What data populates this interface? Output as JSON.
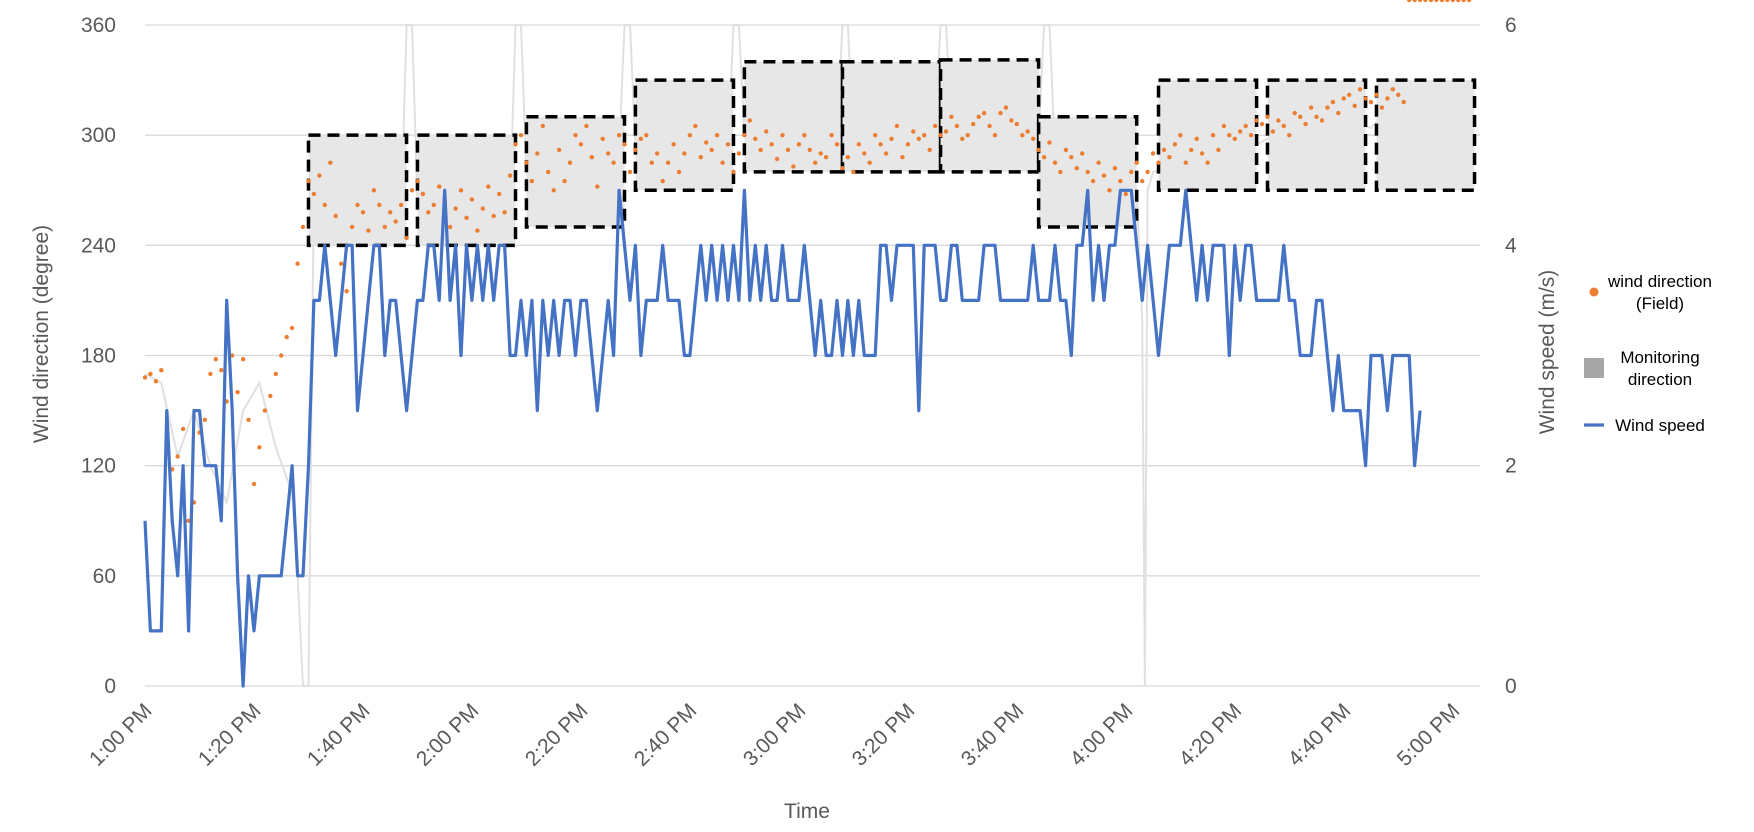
{
  "chart_data": {
    "type": "line",
    "xlabel": "Time",
    "ylabel_left": "Wind direction (degree)",
    "ylabel_right": "Wind speed (m/s)",
    "y_left_range": [
      0,
      360
    ],
    "y_left_ticks": [
      "0",
      "60",
      "120",
      "180",
      "240",
      "300",
      "360"
    ],
    "y_right_range": [
      0,
      6
    ],
    "y_right_ticks": [
      "0",
      "2",
      "4",
      "6"
    ],
    "x_range_minutes": [
      0,
      245
    ],
    "x_ticks": [
      {
        "label": "1:00 PM",
        "minute": 0
      },
      {
        "label": "1:20 PM",
        "minute": 20
      },
      {
        "label": "1:40 PM",
        "minute": 40
      },
      {
        "label": "2:00 PM",
        "minute": 60
      },
      {
        "label": "2:20 PM",
        "minute": 80
      },
      {
        "label": "2:40 PM",
        "minute": 100
      },
      {
        "label": "3:00 PM",
        "minute": 120
      },
      {
        "label": "3:20 PM",
        "minute": 140
      },
      {
        "label": "3:40 PM",
        "minute": 160
      },
      {
        "label": "4:00 PM",
        "minute": 180
      },
      {
        "label": "4:20 PM",
        "minute": 200
      },
      {
        "label": "4:40 PM",
        "minute": 220
      },
      {
        "label": "5:00 PM",
        "minute": 240
      }
    ],
    "grid": "horizontal",
    "legend_position": "right",
    "legend": [
      {
        "label_lines": [
          "wind direction",
          "(Field)"
        ],
        "marker": "dot",
        "color": "#ED7D31"
      },
      {
        "label_lines": [
          "Monitoring",
          "direction"
        ],
        "marker": "square",
        "color": "#A6A6A6"
      },
      {
        "label_lines": [
          "Wind speed"
        ],
        "marker": "line",
        "color": "#4472C4"
      }
    ],
    "monitoring_direction_boxes": [
      {
        "start_minute": 30,
        "end_minute": 48,
        "min_deg": 240,
        "max_deg": 300
      },
      {
        "start_minute": 50,
        "end_minute": 68,
        "min_deg": 240,
        "max_deg": 300
      },
      {
        "start_minute": 70,
        "end_minute": 88,
        "min_deg": 250,
        "max_deg": 310
      },
      {
        "start_minute": 90,
        "end_minute": 108,
        "min_deg": 270,
        "max_deg": 330
      },
      {
        "start_minute": 110,
        "end_minute": 128,
        "min_deg": 280,
        "max_deg": 340
      },
      {
        "start_minute": 128,
        "end_minute": 146,
        "min_deg": 280,
        "max_deg": 340
      },
      {
        "start_minute": 146,
        "end_minute": 164,
        "min_deg": 280,
        "max_deg": 341
      },
      {
        "start_minute": 164,
        "end_minute": 182,
        "min_deg": 250,
        "max_deg": 310
      },
      {
        "start_minute": 186,
        "end_minute": 204,
        "min_deg": 270,
        "max_deg": 330
      },
      {
        "start_minute": 206,
        "end_minute": 224,
        "min_deg": 270,
        "max_deg": 330
      },
      {
        "start_minute": 226,
        "end_minute": 244,
        "min_deg": 270,
        "max_deg": 330
      }
    ],
    "monitoring_direction_line": {
      "minute": [
        0,
        3,
        6,
        9,
        12,
        15,
        18,
        21,
        24,
        27,
        28,
        29,
        29.5,
        30,
        31,
        33,
        36,
        39,
        42,
        45,
        47,
        48,
        49,
        50,
        51,
        53,
        56,
        59,
        62,
        65,
        67,
        68,
        69,
        70,
        71,
        73,
        76,
        79,
        82,
        85,
        87,
        88,
        89,
        90,
        91,
        93,
        96,
        99,
        102,
        105,
        107,
        108,
        109,
        110,
        111,
        113,
        116,
        119,
        122,
        125,
        127,
        128,
        129,
        130,
        131,
        133,
        136,
        139,
        142,
        145,
        146,
        147,
        148,
        149,
        150,
        151,
        153,
        156,
        159,
        162,
        164,
        165,
        166,
        167,
        168,
        170,
        173,
        176,
        179,
        182,
        183,
        183.5,
        184,
        185,
        187,
        190,
        193,
        196,
        199,
        202,
        204,
        206,
        208,
        211,
        214,
        217,
        220,
        223,
        225,
        227,
        229,
        232,
        235,
        238,
        241,
        244
      ],
      "deg": [
        170,
        165,
        125,
        150,
        120,
        100,
        150,
        165,
        130,
        105,
        60,
        0,
        0,
        0,
        270,
        265,
        258,
        263,
        256,
        262,
        258,
        360,
        360,
        265,
        263,
        258,
        262,
        255,
        260,
        258,
        262,
        360,
        360,
        280,
        278,
        285,
        280,
        290,
        285,
        280,
        290,
        360,
        360,
        295,
        290,
        285,
        290,
        285,
        290,
        295,
        290,
        360,
        360,
        300,
        298,
        295,
        300,
        295,
        300,
        290,
        300,
        360,
        360,
        295,
        290,
        295,
        292,
        298,
        300,
        305,
        360,
        360,
        305,
        300,
        306,
        300,
        308,
        312,
        310,
        306,
        300,
        360,
        360,
        290,
        285,
        288,
        282,
        285,
        280,
        270,
        200,
        0,
        270,
        280,
        282,
        285,
        288,
        286,
        285,
        290,
        295,
        298,
        300,
        305,
        302,
        306,
        308,
        305,
        304,
        310,
        313,
        315,
        318,
        320,
        322,
        318
      ]
    },
    "wind_direction_field": {
      "minute": [
        0,
        1,
        2,
        3,
        4,
        5,
        6,
        7,
        8,
        9,
        10,
        11,
        12,
        13,
        14,
        15,
        16,
        17,
        18,
        19,
        20,
        21,
        22,
        23,
        24,
        25,
        26,
        27,
        28,
        29,
        30,
        31,
        32,
        33,
        34,
        35,
        36,
        37,
        38,
        39,
        40,
        41,
        42,
        43,
        44,
        45,
        46,
        47,
        48,
        49,
        50,
        51,
        52,
        53,
        54,
        55,
        56,
        57,
        58,
        59,
        60,
        61,
        62,
        63,
        64,
        65,
        66,
        67,
        68,
        69,
        70,
        71,
        72,
        73,
        74,
        75,
        76,
        77,
        78,
        79,
        80,
        81,
        82,
        83,
        84,
        85,
        86,
        87,
        88,
        89,
        90,
        91,
        92,
        93,
        94,
        95,
        96,
        97,
        98,
        99,
        100,
        101,
        102,
        103,
        104,
        105,
        106,
        107,
        108,
        109,
        110,
        111,
        112,
        113,
        114,
        115,
        116,
        117,
        118,
        119,
        120,
        121,
        122,
        123,
        124,
        125,
        126,
        127,
        128,
        129,
        130,
        131,
        132,
        133,
        134,
        135,
        136,
        137,
        138,
        139,
        140,
        141,
        142,
        143,
        144,
        145,
        146,
        147,
        148,
        149,
        150,
        151,
        152,
        153,
        154,
        155,
        156,
        157,
        158,
        159,
        160,
        161,
        162,
        163,
        164,
        165,
        166,
        167,
        168,
        169,
        170,
        171,
        172,
        173,
        174,
        175,
        176,
        177,
        178,
        179,
        180,
        181,
        182,
        183,
        184,
        185,
        186,
        187,
        188,
        189,
        190,
        191,
        192,
        193,
        194,
        195,
        196,
        197,
        198,
        199,
        200,
        201,
        202,
        203,
        204,
        205,
        206,
        207,
        208,
        209,
        210,
        211,
        212,
        213,
        214,
        215,
        216,
        217,
        218,
        219,
        220,
        221,
        222,
        223,
        224,
        225,
        226,
        227,
        228,
        229,
        230,
        231,
        232,
        233,
        234,
        235,
        236,
        237,
        238,
        239,
        240,
        241,
        242,
        243
      ],
      "deg": [
        168,
        170,
        166,
        172,
        135,
        118,
        125,
        140,
        90,
        100,
        138,
        145,
        170,
        178,
        172,
        155,
        180,
        160,
        178,
        145,
        110,
        130,
        150,
        158,
        170,
        180,
        190,
        195,
        230,
        250,
        275,
        268,
        278,
        262,
        285,
        256,
        230,
        215,
        250,
        262,
        258,
        248,
        270,
        262,
        250,
        258,
        253,
        262,
        244,
        270,
        275,
        268,
        258,
        262,
        272,
        264,
        250,
        260,
        270,
        255,
        265,
        248,
        260,
        272,
        256,
        268,
        258,
        278,
        295,
        300,
        285,
        275,
        290,
        305,
        280,
        270,
        292,
        275,
        285,
        300,
        295,
        305,
        288,
        272,
        298,
        290,
        285,
        300,
        295,
        280,
        292,
        298,
        300,
        285,
        290,
        275,
        285,
        295,
        280,
        290,
        300,
        305,
        288,
        296,
        292,
        300,
        285,
        295,
        280,
        290,
        300,
        308,
        298,
        292,
        302,
        295,
        287,
        300,
        292,
        283,
        295,
        300,
        292,
        285,
        290,
        288,
        300,
        295,
        282,
        288,
        280,
        295,
        290,
        285,
        300,
        295,
        290,
        298,
        305,
        288,
        295,
        302,
        298,
        300,
        292,
        305,
        300,
        302,
        310,
        305,
        298,
        300,
        306,
        310,
        312,
        305,
        300,
        312,
        315,
        308,
        306,
        300,
        302,
        298,
        292,
        288,
        296,
        285,
        280,
        292,
        288,
        282,
        290,
        280,
        275,
        285,
        278,
        270,
        282,
        275,
        268,
        280,
        285,
        275,
        280,
        290,
        285,
        292,
        288,
        295,
        300,
        285,
        292,
        298,
        290,
        285,
        300,
        292,
        305,
        300,
        298,
        302,
        305,
        300,
        308,
        306,
        310,
        302,
        308,
        305,
        300,
        312,
        310,
        306,
        315,
        310,
        308,
        315,
        318,
        312,
        320,
        322,
        316,
        325,
        320,
        318,
        322,
        315,
        320,
        325,
        322,
        318
      ]
    },
    "wind_speed": {
      "minute": [
        0,
        1,
        2,
        3,
        4,
        5,
        6,
        7,
        8,
        9,
        10,
        11,
        12,
        13,
        14,
        15,
        16,
        17,
        18,
        19,
        20,
        21,
        22,
        23,
        24,
        25,
        26,
        27,
        28,
        29,
        30,
        31,
        32,
        33,
        34,
        35,
        36,
        37,
        38,
        39,
        40,
        41,
        42,
        43,
        44,
        45,
        46,
        47,
        48,
        49,
        50,
        51,
        52,
        53,
        54,
        55,
        56,
        57,
        58,
        59,
        60,
        61,
        62,
        63,
        64,
        65,
        66,
        67,
        68,
        69,
        70,
        71,
        72,
        73,
        74,
        75,
        76,
        77,
        78,
        79,
        80,
        81,
        82,
        83,
        84,
        85,
        86,
        87,
        88,
        89,
        90,
        91,
        92,
        93,
        94,
        95,
        96,
        97,
        98,
        99,
        100,
        101,
        102,
        103,
        104,
        105,
        106,
        107,
        108,
        109,
        110,
        111,
        112,
        113,
        114,
        115,
        116,
        117,
        118,
        119,
        120,
        121,
        122,
        123,
        124,
        125,
        126,
        127,
        128,
        129,
        130,
        131,
        132,
        133,
        134,
        135,
        136,
        137,
        138,
        139,
        140,
        141,
        142,
        143,
        144,
        145,
        146,
        147,
        148,
        149,
        150,
        151,
        152,
        153,
        154,
        155,
        156,
        157,
        158,
        159,
        160,
        161,
        162,
        163,
        164,
        165,
        166,
        167,
        168,
        169,
        170,
        171,
        172,
        173,
        174,
        175,
        176,
        177,
        178,
        179,
        180,
        181,
        182,
        183,
        184,
        185,
        186,
        187,
        188,
        189,
        190,
        191,
        192,
        193,
        194,
        195,
        196,
        197,
        198,
        199,
        200,
        201,
        202,
        203,
        204,
        205,
        206,
        207,
        208,
        209,
        210,
        211,
        212,
        213,
        214,
        215,
        216,
        217,
        218,
        219,
        220,
        221,
        222,
        223,
        224,
        225,
        226,
        227,
        228,
        229,
        230,
        231,
        232,
        233,
        234,
        235,
        236,
        237,
        238,
        239,
        240,
        241,
        242,
        243,
        244
      ],
      "speed": [
        1.5,
        0.5,
        0.5,
        0.5,
        2.5,
        1.5,
        1,
        2,
        0.5,
        2.5,
        2.5,
        2,
        2,
        2,
        1.5,
        3.5,
        2.5,
        1,
        0,
        1,
        0.5,
        1,
        1,
        1,
        1,
        1,
        1.5,
        2,
        1,
        1,
        2,
        3.5,
        3.5,
        4,
        3.5,
        3,
        3.5,
        4,
        4,
        2.5,
        3,
        3.5,
        4,
        4,
        3,
        3.5,
        3.5,
        3,
        2.5,
        3,
        3.5,
        3.5,
        4,
        4,
        3.5,
        4.5,
        3.5,
        4,
        3,
        4,
        3.5,
        4,
        3.5,
        4,
        3.5,
        4,
        4,
        3,
        3,
        3.5,
        3,
        3.5,
        2.5,
        3.5,
        3,
        3.5,
        3,
        3.5,
        3.5,
        3,
        3.5,
        3.5,
        3,
        2.5,
        3,
        3.5,
        3,
        4.5,
        4,
        3.5,
        4,
        3,
        3.5,
        3.5,
        3.5,
        4,
        3.5,
        3.5,
        3.5,
        3,
        3,
        3.5,
        4,
        3.5,
        4,
        3.5,
        4,
        3.5,
        4,
        3.5,
        4.5,
        3.5,
        4,
        3.5,
        4,
        3.5,
        3.5,
        4,
        3.5,
        3.5,
        3.5,
        4,
        3.5,
        3,
        3.5,
        3,
        3,
        3.5,
        3,
        3.5,
        3,
        3.5,
        3,
        3,
        3,
        4,
        4,
        3.5,
        4,
        4,
        4,
        4,
        2.5,
        4,
        4,
        4,
        3.5,
        3.5,
        4,
        4,
        3.5,
        3.5,
        3.5,
        3.5,
        4,
        4,
        4,
        3.5,
        3.5,
        3.5,
        3.5,
        3.5,
        3.5,
        4,
        3.5,
        3.5,
        3.5,
        4,
        3.5,
        3.5,
        3,
        4,
        4,
        4.5,
        3.5,
        4,
        3.5,
        4,
        4,
        4.5,
        4.5,
        4.5,
        4,
        3.5,
        4,
        3.5,
        3,
        3.5,
        4,
        4,
        4,
        4.5,
        4,
        3.5,
        4,
        3.5,
        4,
        4,
        4,
        3,
        4,
        3.5,
        4,
        4,
        3.5,
        3.5,
        3.5,
        3.5,
        3.5,
        4,
        3.5,
        3.5,
        3,
        3,
        3,
        3.5,
        3.5,
        3,
        2.5,
        3,
        2.5,
        2.5,
        2.5,
        2.5,
        2,
        3,
        3,
        3,
        2.5,
        3,
        3,
        3,
        3,
        2,
        2.5
      ]
    }
  }
}
